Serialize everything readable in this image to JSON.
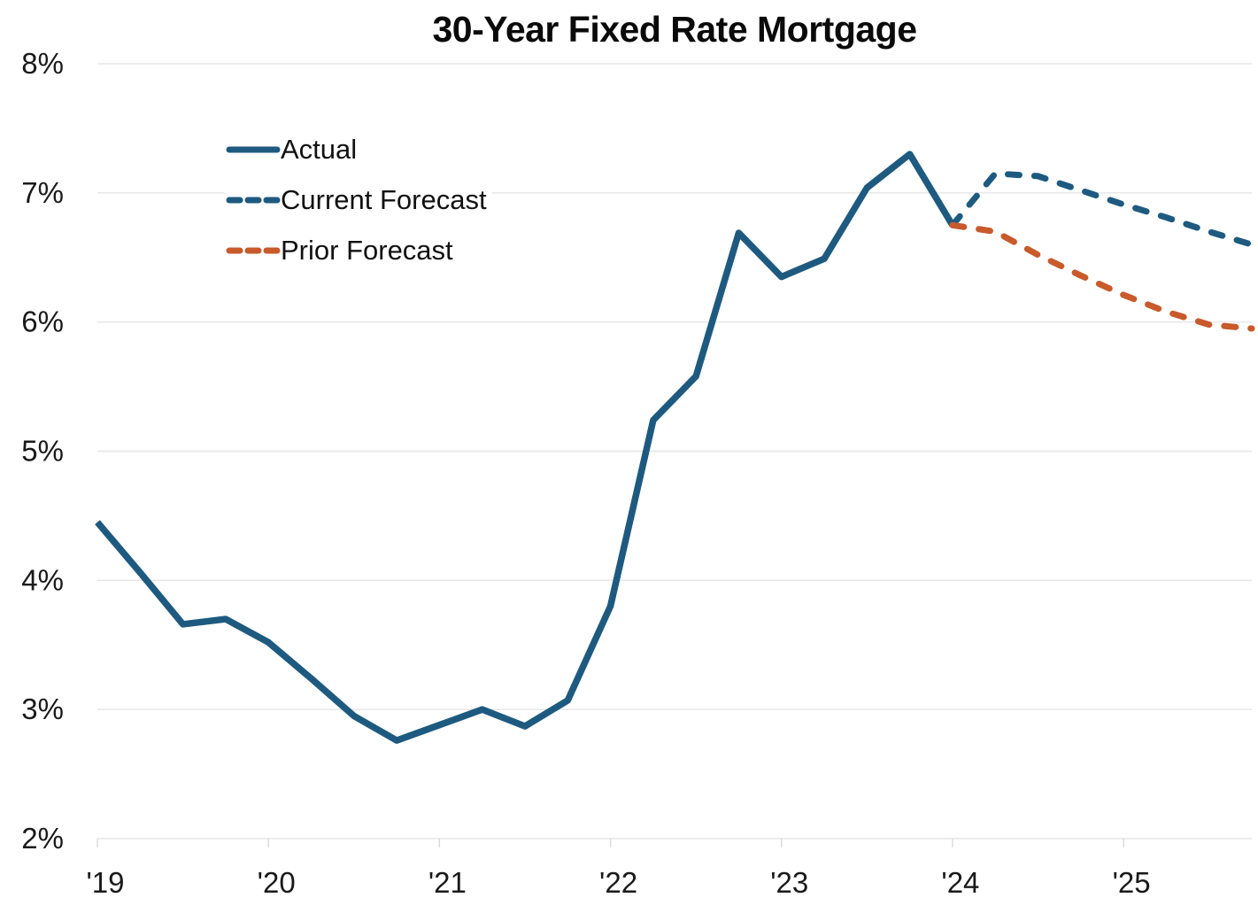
{
  "chart_data": {
    "type": "line",
    "title": "30-Year Fixed Rate Mortgage",
    "xlabel": "",
    "ylabel": "",
    "x_unit": "quarter",
    "x_total_quarters": 28,
    "x_tick_labels": [
      "'19",
      "'20",
      "'21",
      "'22",
      "'23",
      "'24",
      "'25"
    ],
    "x_tick_quarter_positions": [
      0,
      4,
      8,
      12,
      16,
      20,
      24
    ],
    "ylim": [
      2,
      8
    ],
    "y_ticks": [
      2,
      3,
      4,
      5,
      6,
      7,
      8
    ],
    "y_tick_suffix": "%",
    "grid": "horizontal",
    "legend_position": "upper-left-inside",
    "series": [
      {
        "name": "Actual",
        "style": "solid",
        "color": "#1E5A80",
        "x_start_quarter": 0,
        "values": [
          4.45,
          4.06,
          3.66,
          3.7,
          3.52,
          3.24,
          2.95,
          2.76,
          2.88,
          3.0,
          2.87,
          3.07,
          3.8,
          5.24,
          5.58,
          6.69,
          6.35,
          6.49,
          7.04,
          7.3,
          6.75
        ]
      },
      {
        "name": "Current Forecast",
        "style": "dashed",
        "color": "#1E5A80",
        "x_start_quarter": 20,
        "values": [
          6.75,
          7.15,
          7.13,
          7.02,
          6.91,
          6.81,
          6.7,
          6.6
        ]
      },
      {
        "name": "Prior Forecast",
        "style": "dashed",
        "color": "#C85A2B",
        "x_start_quarter": 20,
        "values": [
          6.75,
          6.7,
          6.52,
          6.36,
          6.21,
          6.08,
          5.98,
          5.95
        ]
      }
    ]
  },
  "legend": {
    "items": [
      {
        "label": "Actual",
        "color": "#1E5A80",
        "dash": "none"
      },
      {
        "label": "Current Forecast",
        "color": "#1E5A80",
        "dash": "dashed"
      },
      {
        "label": "Prior Forecast",
        "color": "#C85A2B",
        "dash": "dashed"
      }
    ]
  },
  "colors": {
    "actual_line": "#1E5A80",
    "current_forecast_line": "#1E5A80",
    "prior_forecast_line": "#C85A2B",
    "gridline": "#E6E6E6",
    "tick_mark": "#D9D9D9",
    "axis_text": "#1a1a1a",
    "title_text": "#0a0a0a",
    "background": "#FFFFFF"
  }
}
